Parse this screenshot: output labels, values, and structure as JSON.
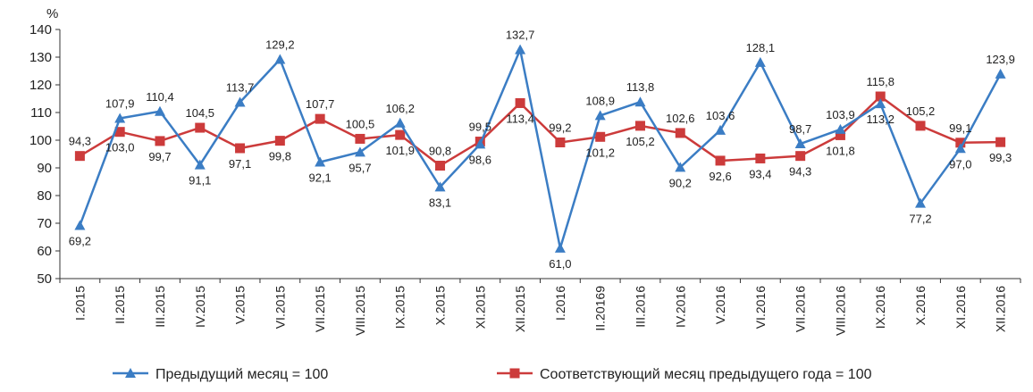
{
  "chart_data": {
    "type": "line",
    "ylabel": "%",
    "ylim": [
      50,
      140
    ],
    "yticks": [
      50,
      60,
      70,
      80,
      90,
      100,
      110,
      120,
      130,
      140
    ],
    "grid": false,
    "legend_position": "bottom",
    "categories": [
      "I.2015",
      "II.2015",
      "III.2015",
      "IV.2015",
      "V.2015",
      "VI.2015",
      "VII.2015",
      "VIII.2015",
      "IX.2015",
      "X.2015",
      "XI.2015",
      "XII.2015",
      "I.2016",
      "II.20169",
      "III.2016",
      "IV.2016",
      "V.2016",
      "VI.2016",
      "VII.2016",
      "VIII.2016",
      "IX.2016",
      "X.2016",
      "XI.2016",
      "XII.2016"
    ],
    "series": [
      {
        "name": "Предыдущий месяц = 100",
        "color": "#3b7dc4",
        "marker": "triangle",
        "values": [
          69.2,
          107.9,
          110.4,
          91.1,
          113.7,
          129.2,
          92.1,
          95.7,
          106.2,
          83.1,
          98.6,
          132.7,
          61.0,
          108.9,
          113.8,
          90.2,
          103.6,
          128.1,
          98.7,
          103.9,
          113.2,
          77.2,
          97.0,
          123.9
        ],
        "labels": [
          "69,2",
          "107,9",
          "110,4",
          "91,1",
          "113,7",
          "129,2",
          "92,1",
          "95,7",
          "106,2",
          "83,1",
          "98,6",
          "132,7",
          "61,0",
          "108,9",
          "113,8",
          "90,2",
          "103,6",
          "128,1",
          "98,7",
          "103,9",
          "113,2",
          "77,2",
          "97,0",
          "123,9"
        ]
      },
      {
        "name": "Соответствующий месяц предыдущего года = 100",
        "color": "#cc3b3b",
        "marker": "square",
        "values": [
          94.3,
          103.0,
          99.7,
          104.5,
          97.1,
          99.8,
          107.7,
          100.5,
          101.9,
          90.8,
          99.5,
          113.4,
          99.2,
          101.2,
          105.2,
          102.6,
          92.6,
          93.4,
          94.3,
          101.8,
          115.8,
          105.2,
          99.1,
          99.3
        ],
        "labels": [
          "94,3",
          "103,0",
          "99,7",
          "104,5",
          "97,1",
          "99,8",
          "107,7",
          "100,5",
          "101,9",
          "90,8",
          "99,5",
          "113,4",
          "99,2",
          "101,2",
          "105,2",
          "102,6",
          "92,6",
          "93,4",
          "94,3",
          "101,8",
          "115,8",
          "105,2",
          "99,1",
          "99,3"
        ]
      }
    ]
  }
}
